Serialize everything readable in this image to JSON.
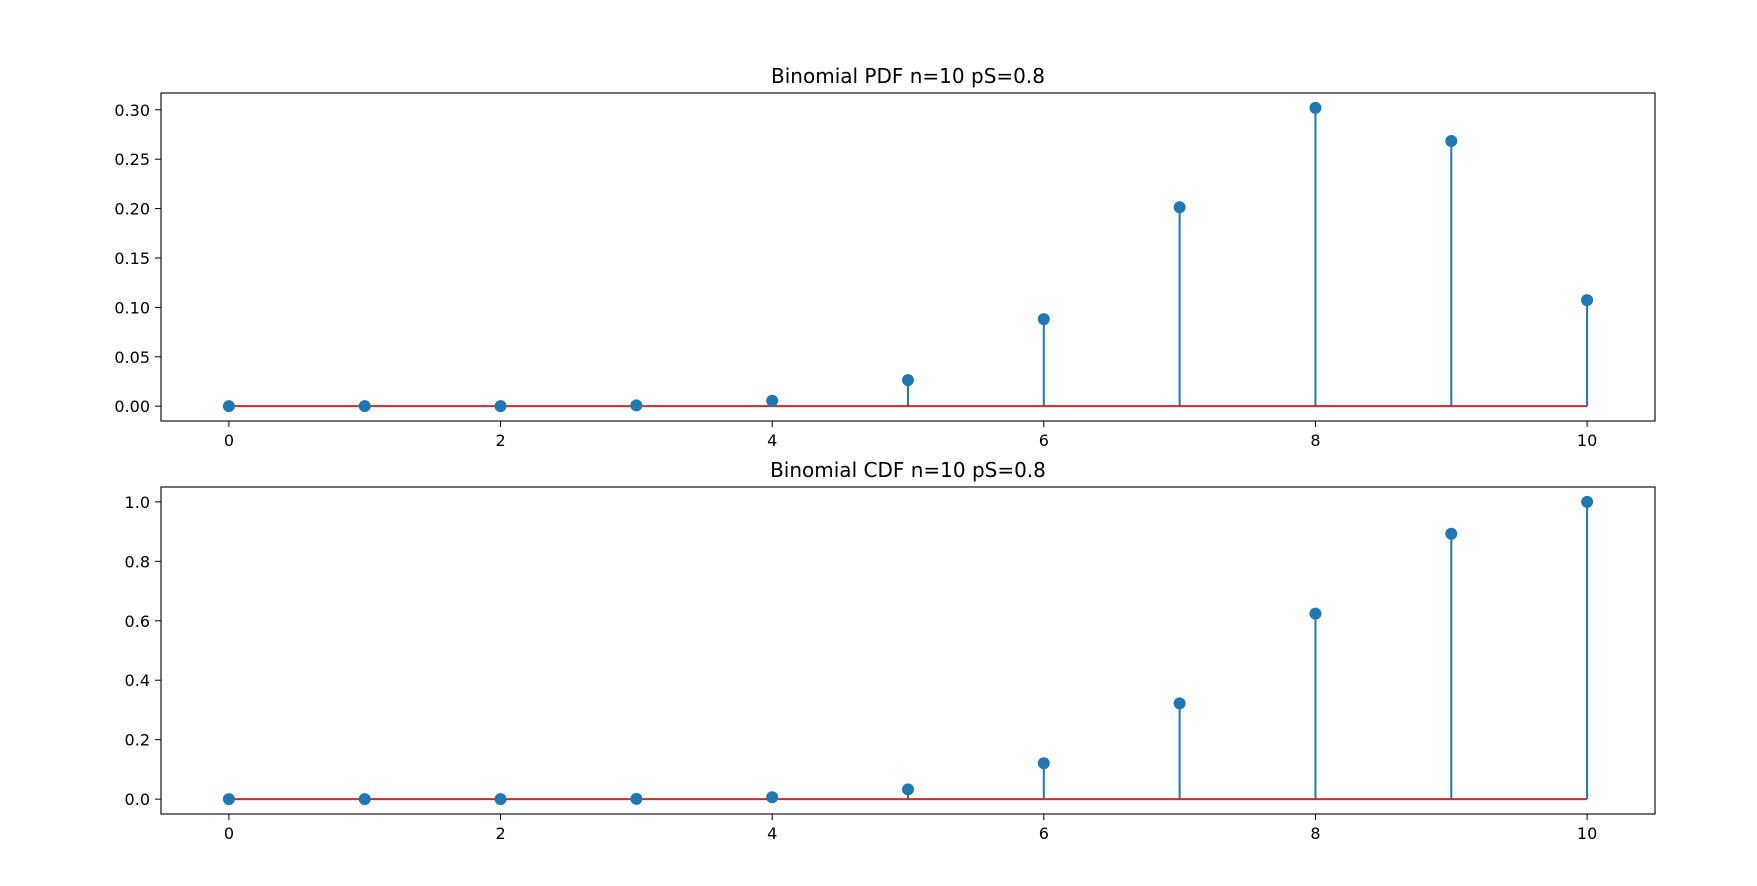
{
  "colors": {
    "stem": "#1f77b4",
    "baseline": "#d62728",
    "axes": "#000000",
    "background": "#ffffff"
  },
  "chart_data": [
    {
      "type": "stem",
      "title": "Binomial PDF n=10 pS=0.8",
      "xlabel": "",
      "ylabel": "",
      "x": [
        0,
        1,
        2,
        3,
        4,
        5,
        6,
        7,
        8,
        9,
        10
      ],
      "values": [
        1e-07,
        4.1e-06,
        7.37e-05,
        0.0007864,
        0.005505,
        0.0264241,
        0.0880803,
        0.2013266,
        0.3019899,
        0.2684355,
        0.1073742
      ],
      "xlim": [
        -0.5,
        10.5
      ],
      "ylim": [
        -0.015,
        0.317
      ],
      "xticks": [
        0,
        2,
        4,
        6,
        8,
        10
      ],
      "xtick_labels": [
        "0",
        "2",
        "4",
        "6",
        "8",
        "10"
      ],
      "yticks": [
        0,
        0.05,
        0.1,
        0.15,
        0.2,
        0.25,
        0.3
      ],
      "ytick_labels": [
        "0.00",
        "0.05",
        "0.10",
        "0.15",
        "0.20",
        "0.25",
        "0.30"
      ],
      "grid": false
    },
    {
      "type": "stem",
      "title": "Binomial CDF n=10 pS=0.8",
      "xlabel": "",
      "ylabel": "",
      "x": [
        0,
        1,
        2,
        3,
        4,
        5,
        6,
        7,
        8,
        9,
        10
      ],
      "values": [
        1e-07,
        4.2e-06,
        7.79e-05,
        0.0008644,
        0.0063694,
        0.0327935,
        0.1208739,
        0.3222005,
        0.6241904,
        0.8926258,
        1.0
      ],
      "xlim": [
        -0.5,
        10.5
      ],
      "ylim": [
        -0.05,
        1.05
      ],
      "xticks": [
        0,
        2,
        4,
        6,
        8,
        10
      ],
      "xtick_labels": [
        "0",
        "2",
        "4",
        "6",
        "8",
        "10"
      ],
      "yticks": [
        0,
        0.2,
        0.4,
        0.6,
        0.8,
        1.0
      ],
      "ytick_labels": [
        "0.0",
        "0.2",
        "0.4",
        "0.6",
        "0.8",
        "1.0"
      ],
      "grid": false
    }
  ]
}
